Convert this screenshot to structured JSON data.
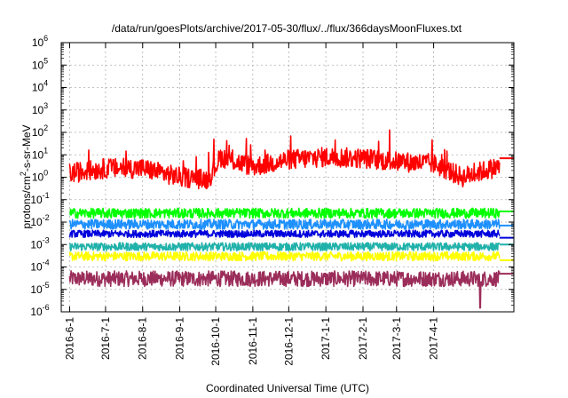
{
  "chart_data": {
    "type": "line",
    "title": "/data/run/goesPlots/archive/2017-05-30/flux/../flux/366daysMoonFluxes.txt",
    "xlabel": "Coordinated Universal Time (UTC)",
    "ylabel_parts": [
      "protons/cm",
      "2",
      "-s-sr-MeV"
    ],
    "yscale": "log",
    "ylim": [
      1e-06,
      1000000.0
    ],
    "xlim": [
      "2016-05-25",
      "2017-06-07"
    ],
    "data_end": "2017-05-26",
    "grid": true,
    "legend": "none",
    "x_ticks": [
      "2016-6-1",
      "2016-7-1",
      "2016-8-1",
      "2016-9-1",
      "2016-10-1",
      "2016-11-1",
      "2016-12-1",
      "2017-1-1",
      "2017-2-1",
      "2017-3-1",
      "2017-4-1"
    ],
    "x_tick_dates": [
      "2016-06-01",
      "2016-07-01",
      "2016-08-01",
      "2016-09-01",
      "2016-10-01",
      "2016-11-01",
      "2016-12-01",
      "2017-01-01",
      "2017-02-01",
      "2017-03-01",
      "2017-04-01"
    ],
    "y_tick_exponents": [
      -6,
      -5,
      -4,
      -3,
      -2,
      -1,
      0,
      1,
      2,
      3,
      4,
      5,
      6
    ],
    "series": [
      {
        "color": "#9b2d5a",
        "base": 3e-05,
        "spread": 0.35,
        "last": 5e-05,
        "dip": {
          "date": "2017-05-10",
          "value": 1.5e-06
        }
      },
      {
        "color": "#ffff00",
        "base": 0.0003,
        "spread": 0.2,
        "last": 0.0002
      },
      {
        "color": "#20b2aa",
        "base": 0.0008,
        "spread": 0.18,
        "last": 0.001
      },
      {
        "color": "#0000dd",
        "base": 0.003,
        "spread": 0.16,
        "last": 0.002
      },
      {
        "color": "#1e90ff",
        "base": 0.008,
        "spread": 0.22,
        "last": 0.007
      },
      {
        "color": "#00ff00",
        "base": 0.025,
        "spread": 0.22,
        "last": 0.03
      },
      {
        "color": "#ff0000",
        "base": 2,
        "spread": 0.45,
        "last": 7,
        "envelope": [
          [
            "2016-06-01",
            1.5
          ],
          [
            "2016-07-01",
            2.5
          ],
          [
            "2016-08-01",
            2.5
          ],
          [
            "2016-09-01",
            1.0
          ],
          [
            "2016-09-25",
            0.8
          ],
          [
            "2016-10-05",
            8
          ],
          [
            "2016-11-01",
            3
          ],
          [
            "2016-12-01",
            6
          ],
          [
            "2017-01-01",
            8
          ],
          [
            "2017-02-01",
            7
          ],
          [
            "2017-03-01",
            5
          ],
          [
            "2017-04-01",
            4
          ],
          [
            "2017-04-25",
            1.0
          ],
          [
            "2017-05-05",
            1.5
          ],
          [
            "2017-05-26",
            3
          ]
        ]
      }
    ]
  }
}
